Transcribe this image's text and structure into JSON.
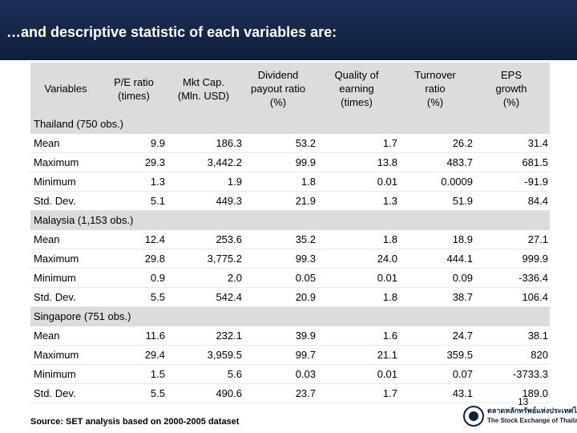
{
  "title": "…and descriptive statistic of each variables are:",
  "headers": [
    "Variables",
    "P/E ratio\n(times)",
    "Mkt Cap.\n(Mln. USD)",
    "Dividend\npayout ratio\n(%)",
    "Quality of\nearning\n(times)",
    "Turnover\nratio\n(%)",
    "EPS\ngrowth\n(%)"
  ],
  "groups": [
    {
      "label": "Thailand (750 obs.)",
      "rows": [
        {
          "label": "Mean",
          "values": [
            "9.9",
            "186.3",
            "53.2",
            "1.7",
            "26.2",
            "31.4"
          ]
        },
        {
          "label": "Maximum",
          "values": [
            "29.3",
            "3,442.2",
            "99.9",
            "13.8",
            "483.7",
            "681.5"
          ]
        },
        {
          "label": "Minimum",
          "values": [
            "1.3",
            "1.9",
            "1.8",
            "0.01",
            "0.0009",
            "-91.9"
          ]
        },
        {
          "label": "Std. Dev.",
          "values": [
            "5.1",
            "449.3",
            "21.9",
            "1.3",
            "51.9",
            "84.4"
          ]
        }
      ]
    },
    {
      "label": "Malaysia (1,153 obs.)",
      "rows": [
        {
          "label": "Mean",
          "values": [
            "12.4",
            "253.6",
            "35.2",
            "1.8",
            "18.9",
            "27.1"
          ]
        },
        {
          "label": "Maximum",
          "values": [
            "29.8",
            "3,775.2",
            "99.3",
            "24.0",
            "444.1",
            "999.9"
          ]
        },
        {
          "label": "Minimum",
          "values": [
            "0.9",
            "2.0",
            "0.05",
            "0.01",
            "0.09",
            "-336.4"
          ]
        },
        {
          "label": "Std. Dev.",
          "values": [
            "5.5",
            "542.4",
            "20.9",
            "1.8",
            "38.7",
            "106.4"
          ]
        }
      ]
    },
    {
      "label": "Singapore (751 obs.)",
      "rows": [
        {
          "label": "Mean",
          "values": [
            "11.6",
            "232.1",
            "39.9",
            "1.6",
            "24.7",
            "38.1"
          ]
        },
        {
          "label": "Maximum",
          "values": [
            "29.4",
            "3,959.5",
            "99.7",
            "21.1",
            "359.5",
            "820"
          ]
        },
        {
          "label": "Minimum",
          "values": [
            "1.5",
            "5.6",
            "0.03",
            "0.01",
            "0.07",
            "-3733.3"
          ]
        },
        {
          "label": "Std. Dev.",
          "values": [
            "5.5",
            "490.6",
            "23.7",
            "1.7",
            "43.1",
            "189.0"
          ]
        }
      ]
    }
  ],
  "source": "Source: SET analysis based on 2000-2005 dataset",
  "page_number": "13",
  "logo": {
    "thai": "ตลาดหลักทรัพย์แห่งประเทศไทย",
    "english": "The Stock Exchange of Thailand"
  },
  "colors": {
    "title_bar": "#0f1f3e",
    "header_fill": "#dcdcdc"
  }
}
